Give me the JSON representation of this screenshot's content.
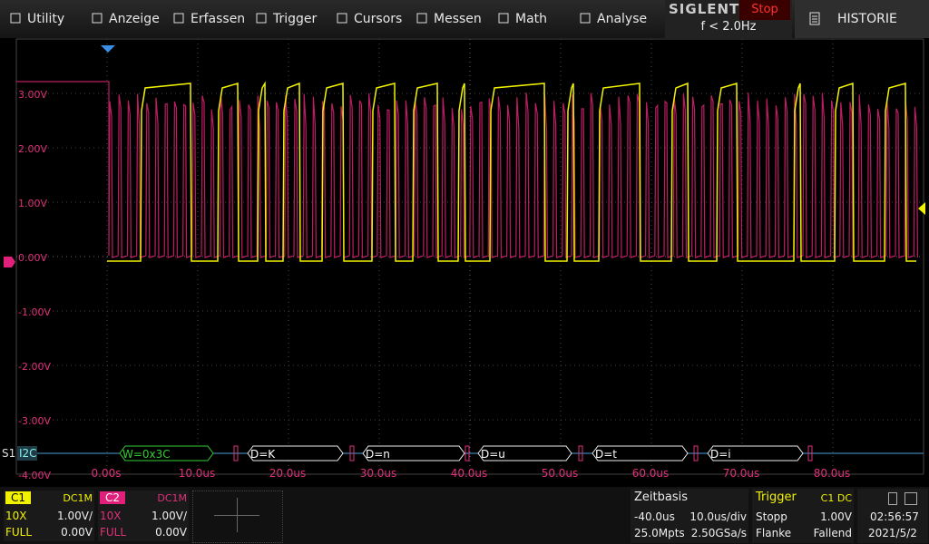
{
  "menu": [
    "Utility",
    "Anzeige",
    "Erfassen",
    "Trigger",
    "Cursors",
    "Messen",
    "Math",
    "Analyse"
  ],
  "brand": "SIGLENT",
  "run_state": "Stop",
  "frequency": "f < 2.0Hz",
  "history": "HISTORIE",
  "y_labels": [
    "3.00V",
    "2.00V",
    "1.00V",
    "0.00V",
    "-1.00V",
    "-2.00V",
    "-3.00V",
    "-4.00V"
  ],
  "x_labels": [
    "0.00s",
    "10.0us",
    "20.0us",
    "30.0us",
    "40.0us",
    "50.0us",
    "60.0us",
    "70.0us",
    "80.0us"
  ],
  "decode": {
    "source": "S1",
    "protocol": "I2C",
    "frames": [
      "W=0x3C",
      "D=K",
      "D=n",
      "D=u",
      "D=t",
      "D=i"
    ]
  },
  "channels": [
    {
      "name": "C1",
      "coupling": "DC1M",
      "probe": "10X",
      "scale": "1.00V/",
      "bandwidth": "FULL",
      "offset": "0.00V"
    },
    {
      "name": "C2",
      "coupling": "DC1M",
      "probe": "10X",
      "scale": "1.00V/",
      "bandwidth": "FULL",
      "offset": "0.00V"
    }
  ],
  "timebase": {
    "title": "Zeitbasis",
    "delay": "-40.0us",
    "scale": "10.0us/div",
    "memory": "25.0Mpts",
    "sample_rate": "2.50GSa/s"
  },
  "trigger": {
    "title": "Trigger",
    "source": "C1 DC",
    "mode": "Stopp",
    "level": "1.00V",
    "type": "Flanke",
    "slope": "Fallend"
  },
  "clock": {
    "time": "02:56:57",
    "date": "2021/5/2"
  }
}
